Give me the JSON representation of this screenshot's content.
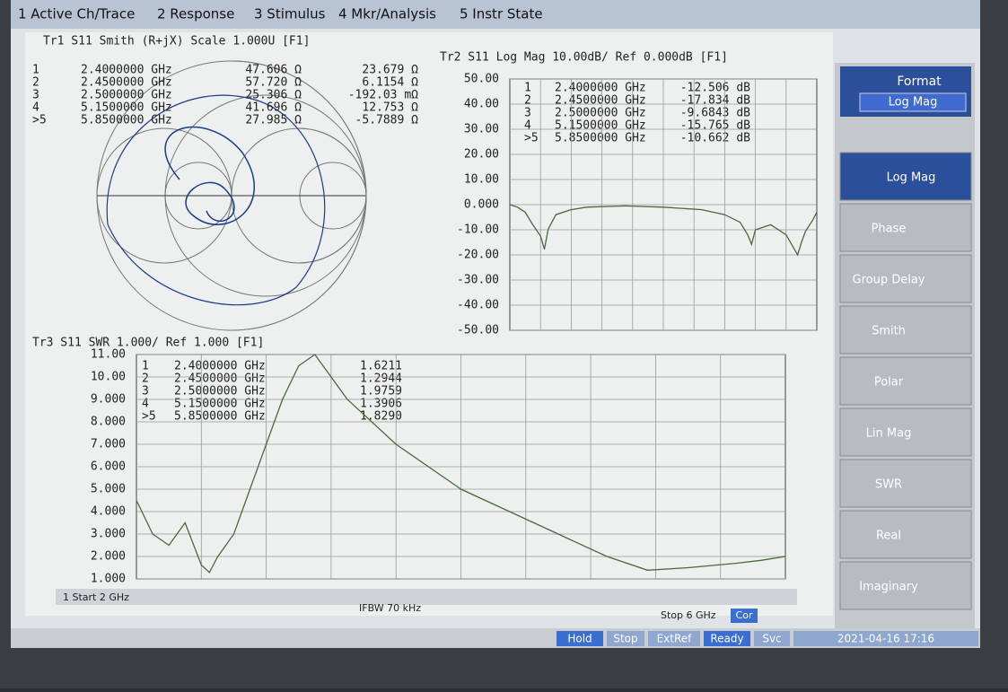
{
  "menu": {
    "items": [
      "1 Active Ch/Trace",
      "2 Response",
      "3 Stimulus",
      "4 Mkr/Analysis",
      "5 Instr State"
    ]
  },
  "smith": {
    "header": "Tr1 S11 Smith (R+jX) Scale 1.000U [F1]",
    "markers": [
      [
        "1",
        "2.4000000 GHz",
        "47.606 Ω",
        "23.679 Ω"
      ],
      [
        "2",
        "2.4500000 GHz",
        "57.720 Ω",
        "6.1154 Ω"
      ],
      [
        "3",
        "2.5000000 GHz",
        "25.306 Ω",
        "-192.03 mΩ"
      ],
      [
        "4",
        "5.1500000 GHz",
        "41.696 Ω",
        "12.753 Ω"
      ],
      [
        ">5",
        "5.8500000 GHz",
        "27.985 Ω",
        "-5.7889 Ω"
      ]
    ]
  },
  "logmag": {
    "header": "Tr2 S11 Log Mag 10.00dB/ Ref 0.000dB [F1]",
    "xlim": [
      2,
      6
    ],
    "ylim": [
      -50,
      50
    ],
    "yticks": [
      {
        "value": 50,
        "label": "50.00"
      },
      {
        "value": 40,
        "label": "40.00"
      },
      {
        "value": 30,
        "label": "30.00"
      },
      {
        "value": 20,
        "label": "20.00"
      },
      {
        "value": 10,
        "label": "10.00"
      },
      {
        "value": 0,
        "label": "0.000"
      },
      {
        "value": -10,
        "label": "-10.00"
      },
      {
        "value": -20,
        "label": "-20.00"
      },
      {
        "value": -30,
        "label": "-30.00"
      },
      {
        "value": -40,
        "label": "-40.00"
      },
      {
        "value": -50,
        "label": "-50.00"
      }
    ],
    "markers": [
      [
        "1",
        "2.4000000 GHz",
        "-12.506 dB"
      ],
      [
        "2",
        "2.4500000 GHz",
        "-17.834 dB"
      ],
      [
        "3",
        "2.5000000 GHz",
        "-9.6843 dB"
      ],
      [
        "4",
        "5.1500000 GHz",
        "-15.765 dB"
      ],
      [
        ">5",
        "5.8500000 GHz",
        "-10.662 dB"
      ]
    ],
    "trace": {
      "x": [
        2,
        2.1,
        2.2,
        2.3,
        2.4,
        2.45,
        2.5,
        2.6,
        2.8,
        3,
        3.5,
        4,
        4.5,
        4.8,
        5,
        5.1,
        5.15,
        5.2,
        5.4,
        5.6,
        5.75,
        5.8,
        5.85,
        5.95,
        6
      ],
      "y": [
        0,
        -1,
        -3,
        -8,
        -12.5,
        -17.8,
        -9.7,
        -4,
        -2,
        -1,
        -0.5,
        -1,
        -2,
        -4,
        -7,
        -12,
        -15.8,
        -10,
        -8,
        -12,
        -20,
        -15,
        -10.7,
        -6,
        -3
      ]
    }
  },
  "swr": {
    "header": "Tr3 S11 SWR 1.000/ Ref 1.000 [F1]",
    "xlim": [
      2,
      6
    ],
    "ylim": [
      1,
      11
    ],
    "yticks": [
      {
        "value": 11,
        "label": "11.00"
      },
      {
        "value": 10,
        "label": "10.00"
      },
      {
        "value": 9,
        "label": "9.000"
      },
      {
        "value": 8,
        "label": "8.000"
      },
      {
        "value": 7,
        "label": "7.000"
      },
      {
        "value": 6,
        "label": "6.000"
      },
      {
        "value": 5,
        "label": "5.000"
      },
      {
        "value": 4,
        "label": "4.000"
      },
      {
        "value": 3,
        "label": "3.000"
      },
      {
        "value": 2,
        "label": "2.000"
      },
      {
        "value": 1,
        "label": "1.000"
      }
    ],
    "markers": [
      [
        "1",
        "2.4000000 GHz",
        "1.6211"
      ],
      [
        "2",
        "2.4500000 GHz",
        "1.2944"
      ],
      [
        "3",
        "2.5000000 GHz",
        "1.9759"
      ],
      [
        "4",
        "5.1500000 GHz",
        "1.3906"
      ],
      [
        ">5",
        "5.8500000 GHz",
        "1.8290"
      ]
    ],
    "trace": {
      "x": [
        2,
        2.1,
        2.2,
        2.3,
        2.4,
        2.45,
        2.5,
        2.6,
        2.7,
        2.8,
        2.9,
        3,
        3.1,
        3.3,
        3.6,
        4,
        4.3,
        4.6,
        4.9,
        5.15,
        5.4,
        5.7,
        5.85,
        6
      ],
      "y": [
        4.5,
        3,
        2.5,
        3.5,
        1.62,
        1.29,
        1.98,
        3,
        5,
        7,
        9,
        10.5,
        11,
        9,
        7,
        5,
        4,
        3,
        2,
        1.39,
        1.5,
        1.7,
        1.83,
        2
      ]
    }
  },
  "footer": {
    "start": "1 Start 2 GHz",
    "ifbw": "IFBW 70 kHz",
    "stop": "Stop 6 GHz",
    "cor": "Cor"
  },
  "status": [
    "Hold",
    "Stop",
    "ExtRef",
    "Ready",
    "Svc",
    "2021-04-16 17:16"
  ],
  "softkeys": {
    "title": "Format",
    "current": "Log Mag",
    "items": [
      "Log Mag",
      "Phase",
      "Group Delay",
      "Smith",
      "Polar",
      "Lin Mag",
      "SWR",
      "Real",
      "Imaginary"
    ]
  }
}
